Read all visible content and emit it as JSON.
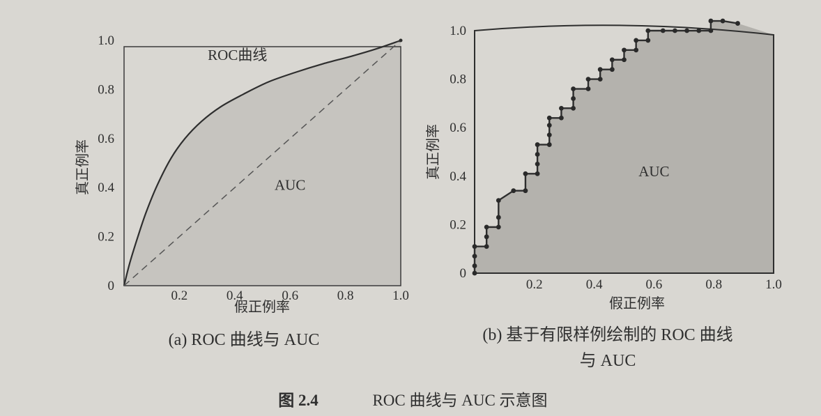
{
  "figure_caption": {
    "number": "图 2.4",
    "text": "ROC 曲线与 AUC 示意图"
  },
  "colors": {
    "background": "#d9d7d2",
    "area_fill_a": "#c6c4bf",
    "area_fill_b": "#b4b2ad",
    "curve": "#2e2e2e"
  },
  "chart_data": [
    {
      "type": "area",
      "caption": "(a) ROC 曲线与 AUC",
      "xlabel": "假正例率",
      "ylabel": "真正例率",
      "xlim": [
        0,
        1
      ],
      "ylim": [
        0,
        1
      ],
      "xticks": [
        "0.2",
        "0.4",
        "0.6",
        "0.8",
        "1.0"
      ],
      "yticks": [
        "0",
        "0.2",
        "0.4",
        "0.6",
        "0.8",
        "1.0"
      ],
      "annotations": [
        {
          "text": "ROC曲线",
          "x": 0.41,
          "y": 0.92
        },
        {
          "text": "AUC",
          "x": 0.6,
          "y": 0.39
        }
      ],
      "series": [
        {
          "style": "solid",
          "x": [
            0,
            0.02,
            0.05,
            0.08,
            0.12,
            0.17,
            0.22,
            0.28,
            0.35,
            0.43,
            0.52,
            0.62,
            0.72,
            0.82,
            0.91,
            1.0
          ],
          "y": [
            0,
            0.09,
            0.2,
            0.3,
            0.41,
            0.52,
            0.6,
            0.67,
            0.73,
            0.78,
            0.83,
            0.87,
            0.905,
            0.935,
            0.965,
            1.0
          ]
        },
        {
          "style": "dashed",
          "x": [
            0,
            1
          ],
          "y": [
            0,
            1
          ]
        }
      ]
    },
    {
      "type": "line",
      "caption_lines": [
        "(b) 基于有限样例绘制的 ROC 曲线",
        "与 AUC"
      ],
      "xlabel": "假正例率",
      "ylabel": "真正例率",
      "xlim": [
        0,
        1
      ],
      "ylim": [
        0,
        1
      ],
      "xticks": [
        "0.2",
        "0.4",
        "0.6",
        "0.8",
        "1.0"
      ],
      "yticks": [
        "0",
        "0.2",
        "0.4",
        "0.6",
        "0.8",
        "1.0"
      ],
      "annotations": [
        {
          "text": "AUC",
          "x": 0.6,
          "y": 0.4
        }
      ],
      "series": [
        {
          "style": "step-markers",
          "x": [
            0,
            0,
            0,
            0,
            0.04,
            0.04,
            0.04,
            0.08,
            0.08,
            0.08,
            0.13,
            0.17,
            0.17,
            0.21,
            0.21,
            0.21,
            0.21,
            0.25,
            0.25,
            0.25,
            0.25,
            0.29,
            0.29,
            0.33,
            0.33,
            0.33,
            0.38,
            0.38,
            0.42,
            0.42,
            0.46,
            0.46,
            0.5,
            0.5,
            0.54,
            0.54,
            0.58,
            0.58,
            0.63,
            0.67,
            0.71,
            0.75,
            0.79,
            0.79,
            0.83,
            0.88
          ],
          "y": [
            0,
            0.03,
            0.07,
            0.11,
            0.11,
            0.15,
            0.19,
            0.19,
            0.23,
            0.3,
            0.34,
            0.34,
            0.41,
            0.41,
            0.45,
            0.49,
            0.53,
            0.53,
            0.57,
            0.61,
            0.64,
            0.64,
            0.68,
            0.68,
            0.72,
            0.76,
            0.76,
            0.8,
            0.8,
            0.84,
            0.84,
            0.88,
            0.88,
            0.92,
            0.92,
            0.96,
            0.96,
            1.0,
            1.0,
            1.0,
            1.0,
            1.0,
            1.0,
            1.04,
            1.04,
            1.03
          ]
        }
      ]
    }
  ]
}
